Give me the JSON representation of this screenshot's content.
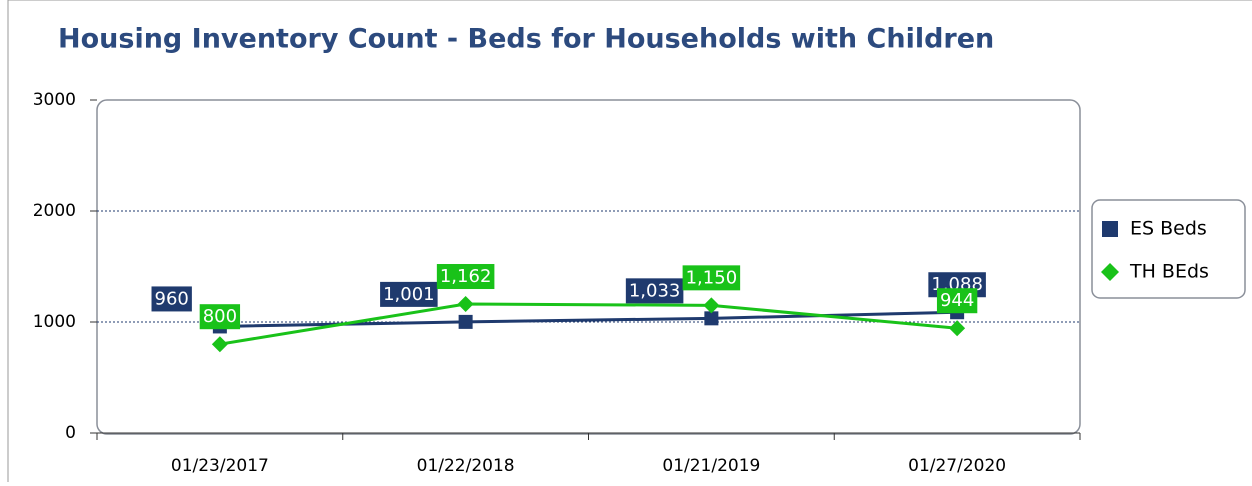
{
  "chart_data": {
    "type": "line",
    "title": "Housing Inventory Count - Beds for Households with Children",
    "categories": [
      "01/23/2017",
      "01/22/2018",
      "01/21/2019",
      "01/27/2020"
    ],
    "series": [
      {
        "name": "ES Beds",
        "color": "#1f3a6e",
        "values": [
          960,
          1001,
          1033,
          1088
        ],
        "value_labels": [
          "960",
          "1,001",
          "1,033",
          "1,088"
        ]
      },
      {
        "name": "TH BEds",
        "color": "#19c219",
        "values": [
          800,
          1162,
          1150,
          944
        ],
        "value_labels": [
          "800",
          "1,162",
          "1,150",
          "944"
        ]
      }
    ],
    "ylim": [
      0,
      3000
    ],
    "yticks": [
      0,
      1000,
      2000,
      3000
    ],
    "grid": true,
    "legend": "right"
  }
}
